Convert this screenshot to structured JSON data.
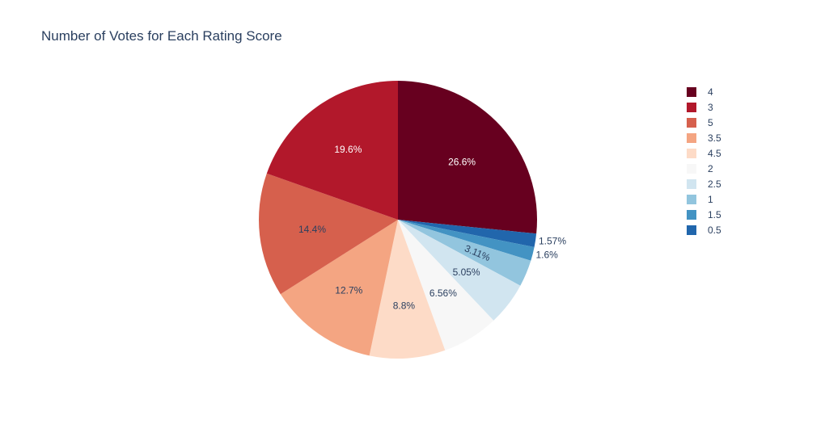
{
  "chart_data": {
    "type": "pie",
    "title": "Number of Votes for Each Rating Score",
    "direction": "clockwise",
    "start": "top",
    "legend_position": "right",
    "slices": [
      {
        "label": "4",
        "percent": 26.6,
        "text": "26.6%",
        "color": "#67001f",
        "text_color": "#ffffff",
        "label_outside": false
      },
      {
        "label": "0.5",
        "percent": 1.57,
        "text": "1.57%",
        "color": "#2166ac",
        "text_color": "#2a3f5f",
        "label_outside": true
      },
      {
        "label": "1.5",
        "percent": 1.6,
        "text": "1.6%",
        "color": "#4393c3",
        "text_color": "#2a3f5f",
        "label_outside": true
      },
      {
        "label": "1",
        "percent": 3.11,
        "text": "3.11%",
        "color": "#92c5de",
        "text_color": "#2a3f5f",
        "label_outside": false,
        "rotate": true
      },
      {
        "label": "2.5",
        "percent": 5.05,
        "text": "5.05%",
        "color": "#d1e5f0",
        "text_color": "#2a3f5f",
        "label_outside": false
      },
      {
        "label": "2",
        "percent": 6.56,
        "text": "6.56%",
        "color": "#f7f7f7",
        "text_color": "#2a3f5f",
        "label_outside": false
      },
      {
        "label": "4.5",
        "percent": 8.8,
        "text": "8.8%",
        "color": "#fddbc7",
        "text_color": "#2a3f5f",
        "label_outside": false
      },
      {
        "label": "3.5",
        "percent": 12.7,
        "text": "12.7%",
        "color": "#f4a582",
        "text_color": "#2a3f5f",
        "label_outside": false
      },
      {
        "label": "5",
        "percent": 14.4,
        "text": "14.4%",
        "color": "#d6604d",
        "text_color": "#2a3f5f",
        "label_outside": false
      },
      {
        "label": "3",
        "percent": 19.6,
        "text": "19.6%",
        "color": "#b2182b",
        "text_color": "#ffffff",
        "label_outside": false
      }
    ],
    "legend": [
      {
        "label": "4",
        "color": "#67001f"
      },
      {
        "label": "3",
        "color": "#b2182b"
      },
      {
        "label": "5",
        "color": "#d6604d"
      },
      {
        "label": "3.5",
        "color": "#f4a582"
      },
      {
        "label": "4.5",
        "color": "#fddbc7"
      },
      {
        "label": "2",
        "color": "#f7f7f7"
      },
      {
        "label": "2.5",
        "color": "#d1e5f0"
      },
      {
        "label": "1",
        "color": "#92c5de"
      },
      {
        "label": "1.5",
        "color": "#4393c3"
      },
      {
        "label": "0.5",
        "color": "#2166ac"
      }
    ]
  }
}
